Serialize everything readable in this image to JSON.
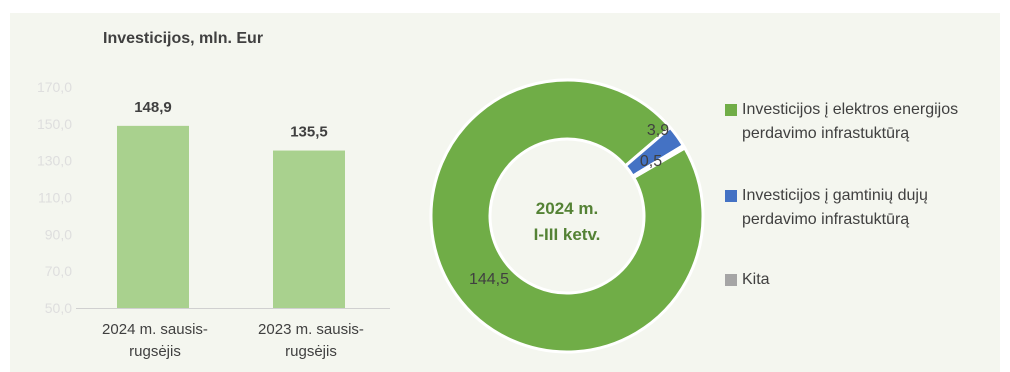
{
  "chart_data": [
    {
      "type": "bar",
      "title": "Investicijos, mln. Eur",
      "categories": [
        "2024 m. sausis-rugsėjis",
        "2023 m. sausis-rugsėjis"
      ],
      "category_lines": [
        [
          "2024 m. sausis-",
          "rugsėjis"
        ],
        [
          "2023 m. sausis-",
          "rugsėjis"
        ]
      ],
      "values": [
        148.9,
        135.5
      ],
      "value_labels": [
        "148,9",
        "135,5"
      ],
      "ylim": [
        50,
        170
      ],
      "yticks": [
        50,
        70,
        90,
        110,
        130,
        150,
        170
      ],
      "ytick_labels": [
        "50,0",
        "70,0",
        "90,0",
        "110,0",
        "130,0",
        "150,0",
        "170,0"
      ],
      "color": "#a9d18e"
    },
    {
      "type": "pie",
      "style": "donut",
      "center_label": [
        "2024 m.",
        "I-III ketv."
      ],
      "slices": [
        {
          "name": "Investicijos į elektros energijos perdavimo infrastuktūrą",
          "value": 144.5,
          "label": "144,5",
          "color": "#70ad47"
        },
        {
          "name": "Investicijos į gamtinių dujų perdavimo infrastuktūrą",
          "value": 3.9,
          "label": "3,9",
          "color": "#4472c4"
        },
        {
          "name": "Kita",
          "value": 0.5,
          "label": "0,5",
          "color": "#a5a5a5"
        }
      ]
    }
  ],
  "legend": [
    {
      "lines": [
        "Investicijos į elektros energijos",
        "perdavimo infrastuktūrą"
      ],
      "color": "#70ad47"
    },
    {
      "lines": [
        "Investicijos į gamtinių dujų",
        "perdavimo infrastuktūrą"
      ],
      "color": "#4472c4"
    },
    {
      "lines": [
        "Kita"
      ],
      "color": "#a5a5a5"
    }
  ]
}
